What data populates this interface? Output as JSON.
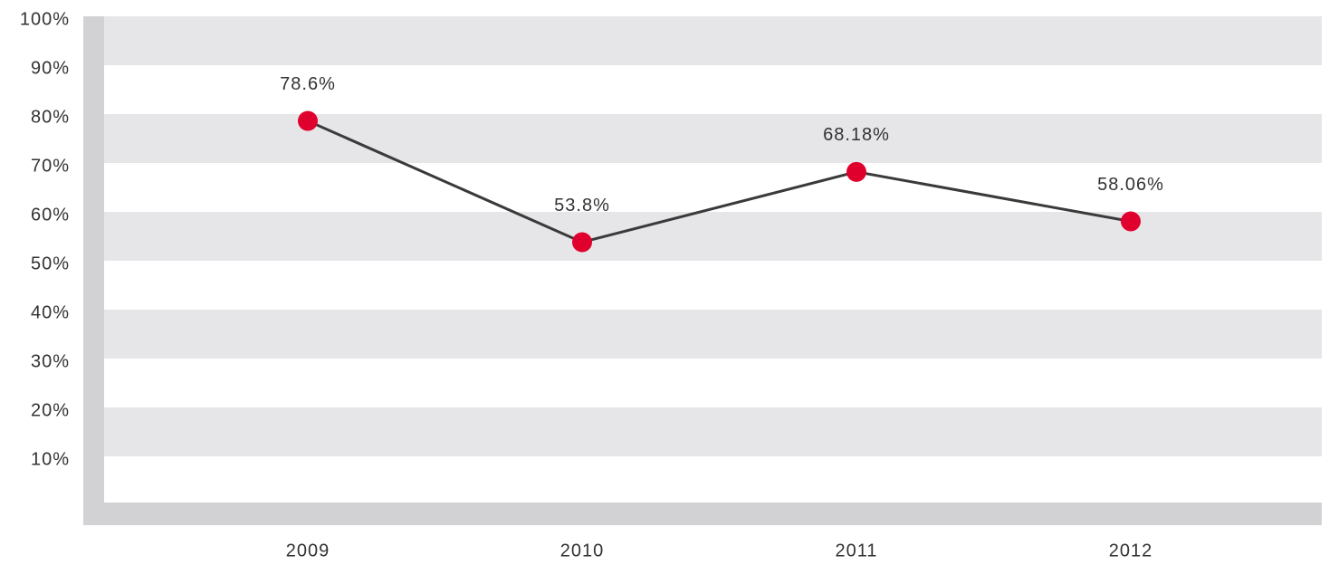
{
  "chart_data": {
    "type": "line",
    "categories": [
      "2009",
      "2010",
      "2011",
      "2012"
    ],
    "series": [
      {
        "color": "#3a3a3a",
        "marker_color": "#e0002d",
        "values": [
          78.6,
          53.8,
          68.18,
          58.06
        ],
        "value_labels": [
          "78.6%",
          "53.8%",
          "68.18%",
          "58.06%"
        ]
      }
    ],
    "ylim": [
      0,
      100
    ],
    "yticks": [
      {
        "value": 10,
        "label": "10%"
      },
      {
        "value": 20,
        "label": "20%"
      },
      {
        "value": 30,
        "label": "30%"
      },
      {
        "value": 40,
        "label": "40%"
      },
      {
        "value": 50,
        "label": "50%"
      },
      {
        "value": 60,
        "label": "60%"
      },
      {
        "value": 70,
        "label": "70%"
      },
      {
        "value": 80,
        "label": "80%"
      },
      {
        "value": 90,
        "label": "90%"
      },
      {
        "value": 100,
        "label": "100%"
      }
    ],
    "grid": "bands",
    "band_color": "#e6e6e9",
    "axis_color": "#d2d2d5"
  }
}
